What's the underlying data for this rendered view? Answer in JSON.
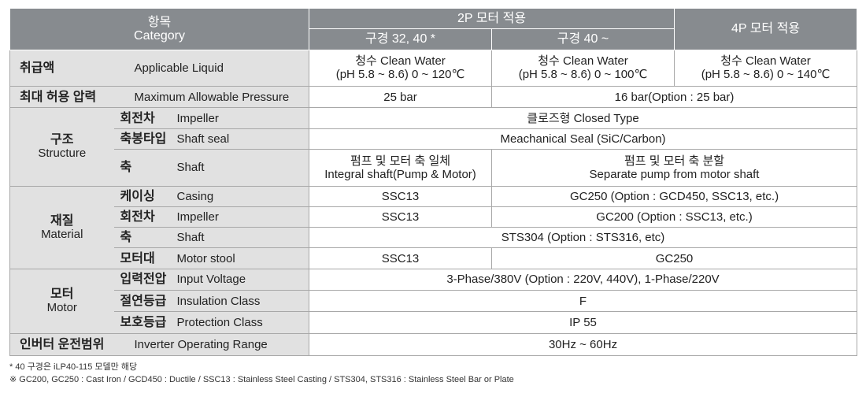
{
  "header": {
    "category_ko": "항목",
    "category_en": "Category",
    "col_2p": "2P 모터 적용",
    "col_2p_a": "구경 32, 40 *",
    "col_2p_b": "구경 40 ~",
    "col_4p": "4P 모터 적용"
  },
  "rows": {
    "liquid": {
      "ko": "취급액",
      "en": "Applicable Liquid",
      "v1_l1": "청수 Clean Water",
      "v1_l2": "(pH 5.8 ~ 8.6) 0 ~ 120℃",
      "v2_l1": "청수 Clean Water",
      "v2_l2": "(pH 5.8 ~ 8.6) 0 ~ 100℃",
      "v3_l1": "청수 Clean Water",
      "v3_l2": "(pH 5.8 ~ 8.6) 0 ~ 140℃"
    },
    "pressure": {
      "ko": "최대 허용 압력",
      "en": "Maximum Allowable Pressure",
      "v1": "25 bar",
      "v2": "16 bar(Option : 25 bar)"
    },
    "structure": {
      "ko": "구조",
      "en": "Structure",
      "impeller_ko": "회전차",
      "impeller_en": "Impeller",
      "impeller_v": "클로즈형 Closed Type",
      "seal_ko": "축봉타입",
      "seal_en": "Shaft seal",
      "seal_v": "Meachanical Seal (SiC/Carbon)",
      "shaft_ko": "축",
      "shaft_en": "Shaft",
      "shaft_v1_l1": "펌프 및 모터 축 일체",
      "shaft_v1_l2": "Integral shaft(Pump & Motor)",
      "shaft_v2_l1": "펌프 및 모터 축 분할",
      "shaft_v2_l2": "Separate pump from motor shaft"
    },
    "material": {
      "ko": "재질",
      "en": "Material",
      "casing_ko": "케이싱",
      "casing_en": "Casing",
      "casing_v1": "SSC13",
      "casing_v2": "GC250 (Option : GCD450, SSC13, etc.)",
      "impeller_ko": "회전차",
      "impeller_en": "Impeller",
      "impeller_v1": "SSC13",
      "impeller_v2": "GC200 (Option : SSC13, etc.)",
      "shaft_ko": "축",
      "shaft_en": "Shaft",
      "shaft_v": "STS304 (Option : STS316, etc)",
      "stool_ko": "모터대",
      "stool_en": "Motor stool",
      "stool_v1": "SSC13",
      "stool_v2": "GC250"
    },
    "motor": {
      "ko": "모터",
      "en": "Motor",
      "voltage_ko": "입력전압",
      "voltage_en": "Input Voltage",
      "voltage_v": "3-Phase/380V (Option : 220V, 440V), 1-Phase/220V",
      "insul_ko": "절연등급",
      "insul_en": "Insulation Class",
      "insul_v": "F",
      "prot_ko": "보호등급",
      "prot_en": "Protection Class",
      "prot_v": "IP 55"
    },
    "inverter": {
      "ko": "인버터 운전범위",
      "en": "Inverter Operating Range",
      "v": "30Hz ~ 60Hz"
    }
  },
  "notes": {
    "n1": "* 40 구경은 iLP40-115 모델만 해당",
    "n2": "※ GC200, GC250 : Cast Iron / GCD450 : Ductile / SSC13 : Stainless Steel Casting / STS304, STS316 : Stainless Steel Bar or Plate"
  }
}
